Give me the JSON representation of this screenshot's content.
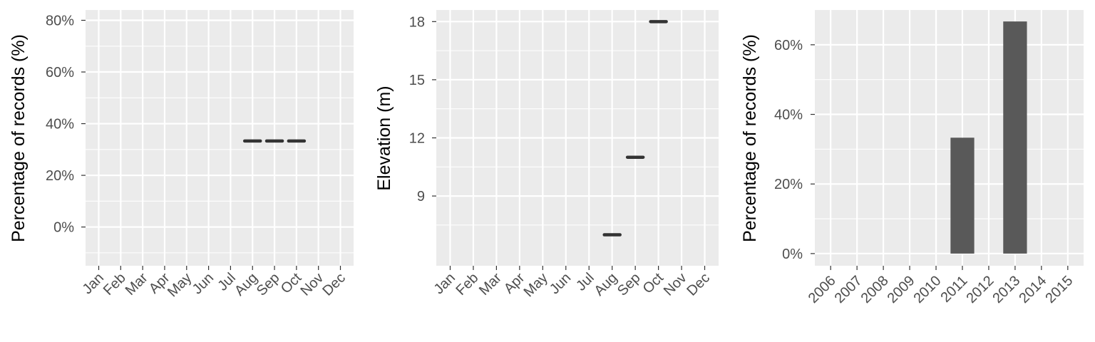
{
  "chart_data": [
    {
      "type": "line",
      "title": "",
      "xlabel": "",
      "ylabel": "Percentage of records (%)",
      "categories": [
        "Jan",
        "Feb",
        "Mar",
        "Apr",
        "May",
        "Jun",
        "Jul",
        "Aug",
        "Sep",
        "Oct",
        "Nov",
        "Dec"
      ],
      "values": [
        null,
        null,
        null,
        null,
        null,
        null,
        null,
        33.3,
        33.3,
        33.3,
        null,
        null
      ],
      "yticks": [
        0,
        20,
        40,
        60,
        80
      ],
      "ytick_labels": [
        "0%",
        "20%",
        "40%",
        "60%",
        "80%"
      ],
      "ylim": [
        -15,
        84
      ],
      "grid": true
    },
    {
      "type": "line",
      "title": "",
      "xlabel": "",
      "ylabel": "Elevation (m)",
      "categories": [
        "Jan",
        "Feb",
        "Mar",
        "Apr",
        "May",
        "Jun",
        "Jul",
        "Aug",
        "Sep",
        "Oct",
        "Nov",
        "Dec"
      ],
      "values": [
        null,
        null,
        null,
        null,
        null,
        null,
        null,
        7,
        11,
        18,
        null,
        null
      ],
      "yticks": [
        9,
        12,
        15,
        18
      ],
      "ytick_labels": [
        "9",
        "12",
        "15",
        "18"
      ],
      "ylim": [
        5.4,
        18.6
      ],
      "grid": true
    },
    {
      "type": "bar",
      "title": "",
      "xlabel": "",
      "ylabel": "Percentage of records (%)",
      "categories": [
        "2006",
        "2007",
        "2008",
        "2009",
        "2010",
        "2011",
        "2012",
        "2013",
        "2014",
        "2015"
      ],
      "values": [
        0,
        0,
        0,
        0,
        0,
        33.3,
        0,
        66.7,
        0,
        0
      ],
      "yticks": [
        0,
        20,
        40,
        60
      ],
      "ytick_labels": [
        "0%",
        "20%",
        "40%",
        "60%"
      ],
      "ylim": [
        -3.5,
        70
      ],
      "grid": true
    }
  ],
  "colors": {
    "panel_background": "#ebebeb",
    "grid_line": "#ffffff",
    "data_mark": "#333333",
    "bar_fill": "#595959",
    "tick_label": "#4d4d4d",
    "axis_title": "#000000"
  }
}
